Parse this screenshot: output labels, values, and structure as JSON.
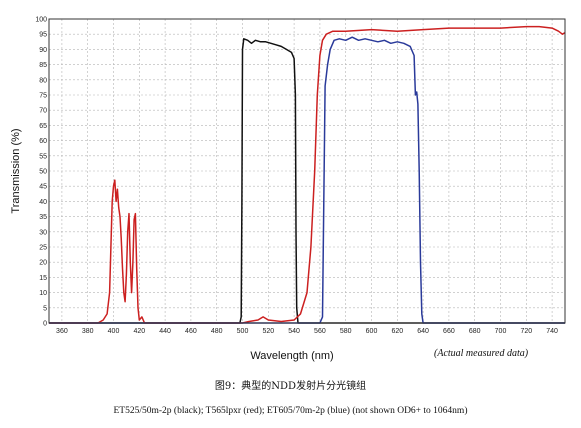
{
  "chart_data": {
    "type": "line",
    "title": "",
    "xlabel": "Wavelength (nm)",
    "ylabel": "Transmission (%)",
    "xlim": [
      350,
      750
    ],
    "ylim": [
      0,
      100
    ],
    "grid": true,
    "x_ticks": [
      360,
      380,
      400,
      420,
      440,
      460,
      480,
      500,
      520,
      540,
      560,
      580,
      600,
      620,
      640,
      660,
      680,
      700,
      720,
      740
    ],
    "y_ticks": [
      0,
      5,
      10,
      15,
      20,
      25,
      30,
      35,
      40,
      45,
      50,
      55,
      60,
      65,
      70,
      75,
      80,
      85,
      90,
      95,
      100
    ],
    "series": [
      {
        "color": "#111111",
        "points": [
          [
            350,
            0
          ],
          [
            498,
            0
          ],
          [
            499,
            2
          ],
          [
            499.5,
            40
          ],
          [
            500,
            90
          ],
          [
            501,
            93.5
          ],
          [
            504,
            93
          ],
          [
            507,
            92
          ],
          [
            510,
            93
          ],
          [
            514,
            92.5
          ],
          [
            518,
            92.5
          ],
          [
            522,
            92
          ],
          [
            526,
            91.5
          ],
          [
            530,
            91
          ],
          [
            534,
            90
          ],
          [
            538,
            89
          ],
          [
            540,
            87
          ],
          [
            541,
            75
          ],
          [
            541.5,
            30
          ],
          [
            542,
            5
          ],
          [
            543,
            0
          ],
          [
            750,
            0
          ]
        ]
      },
      {
        "color": "#cc2020",
        "points": [
          [
            350,
            0
          ],
          [
            388,
            0
          ],
          [
            392,
            1
          ],
          [
            395,
            3
          ],
          [
            397,
            10
          ],
          [
            398,
            25
          ],
          [
            399,
            40
          ],
          [
            400,
            45
          ],
          [
            401,
            47
          ],
          [
            402,
            40
          ],
          [
            403,
            44
          ],
          [
            404,
            38
          ],
          [
            405,
            35
          ],
          [
            406,
            28
          ],
          [
            407,
            18
          ],
          [
            408,
            10
          ],
          [
            409,
            7
          ],
          [
            410,
            16
          ],
          [
            411,
            30
          ],
          [
            412,
            36
          ],
          [
            413,
            20
          ],
          [
            414,
            10
          ],
          [
            415,
            20
          ],
          [
            416,
            34
          ],
          [
            417,
            36
          ],
          [
            418,
            18
          ],
          [
            419,
            5
          ],
          [
            420,
            1
          ],
          [
            422,
            2
          ],
          [
            424,
            0
          ],
          [
            500,
            0
          ],
          [
            505,
            0.5
          ],
          [
            512,
            1
          ],
          [
            516,
            2
          ],
          [
            520,
            1
          ],
          [
            530,
            0.5
          ],
          [
            540,
            1
          ],
          [
            545,
            3
          ],
          [
            550,
            10
          ],
          [
            553,
            25
          ],
          [
            556,
            50
          ],
          [
            558,
            75
          ],
          [
            560,
            88
          ],
          [
            562,
            93
          ],
          [
            565,
            95
          ],
          [
            570,
            96
          ],
          [
            580,
            96
          ],
          [
            600,
            96.5
          ],
          [
            620,
            96
          ],
          [
            640,
            96.5
          ],
          [
            660,
            97
          ],
          [
            680,
            97
          ],
          [
            700,
            97
          ],
          [
            720,
            97.5
          ],
          [
            730,
            97.5
          ],
          [
            740,
            97
          ],
          [
            745,
            96
          ],
          [
            748,
            95
          ],
          [
            750,
            95.5
          ]
        ]
      },
      {
        "color": "#2a3a9a",
        "points": [
          [
            350,
            0
          ],
          [
            560,
            0
          ],
          [
            562,
            2
          ],
          [
            563,
            40
          ],
          [
            564,
            78
          ],
          [
            566,
            85
          ],
          [
            568,
            90
          ],
          [
            571,
            93
          ],
          [
            575,
            93.5
          ],
          [
            580,
            93
          ],
          [
            585,
            94
          ],
          [
            590,
            93
          ],
          [
            595,
            93.5
          ],
          [
            600,
            93
          ],
          [
            605,
            92.5
          ],
          [
            610,
            93
          ],
          [
            615,
            92
          ],
          [
            620,
            92.5
          ],
          [
            625,
            92
          ],
          [
            630,
            91
          ],
          [
            633,
            88
          ],
          [
            634,
            75
          ],
          [
            635,
            76
          ],
          [
            636,
            72
          ],
          [
            637,
            50
          ],
          [
            638,
            20
          ],
          [
            639,
            3
          ],
          [
            640,
            0
          ],
          [
            750,
            0
          ]
        ]
      }
    ],
    "annotations": [
      "(Actual measured data)"
    ]
  },
  "captions": {
    "figure": "图9：典型的NDD发射片分光镜组",
    "series_note": "ET525/50m-2p (black); T565lpxr (red); ET605/70m-2p (blue) (not shown OD6+ to 1064nm)"
  }
}
